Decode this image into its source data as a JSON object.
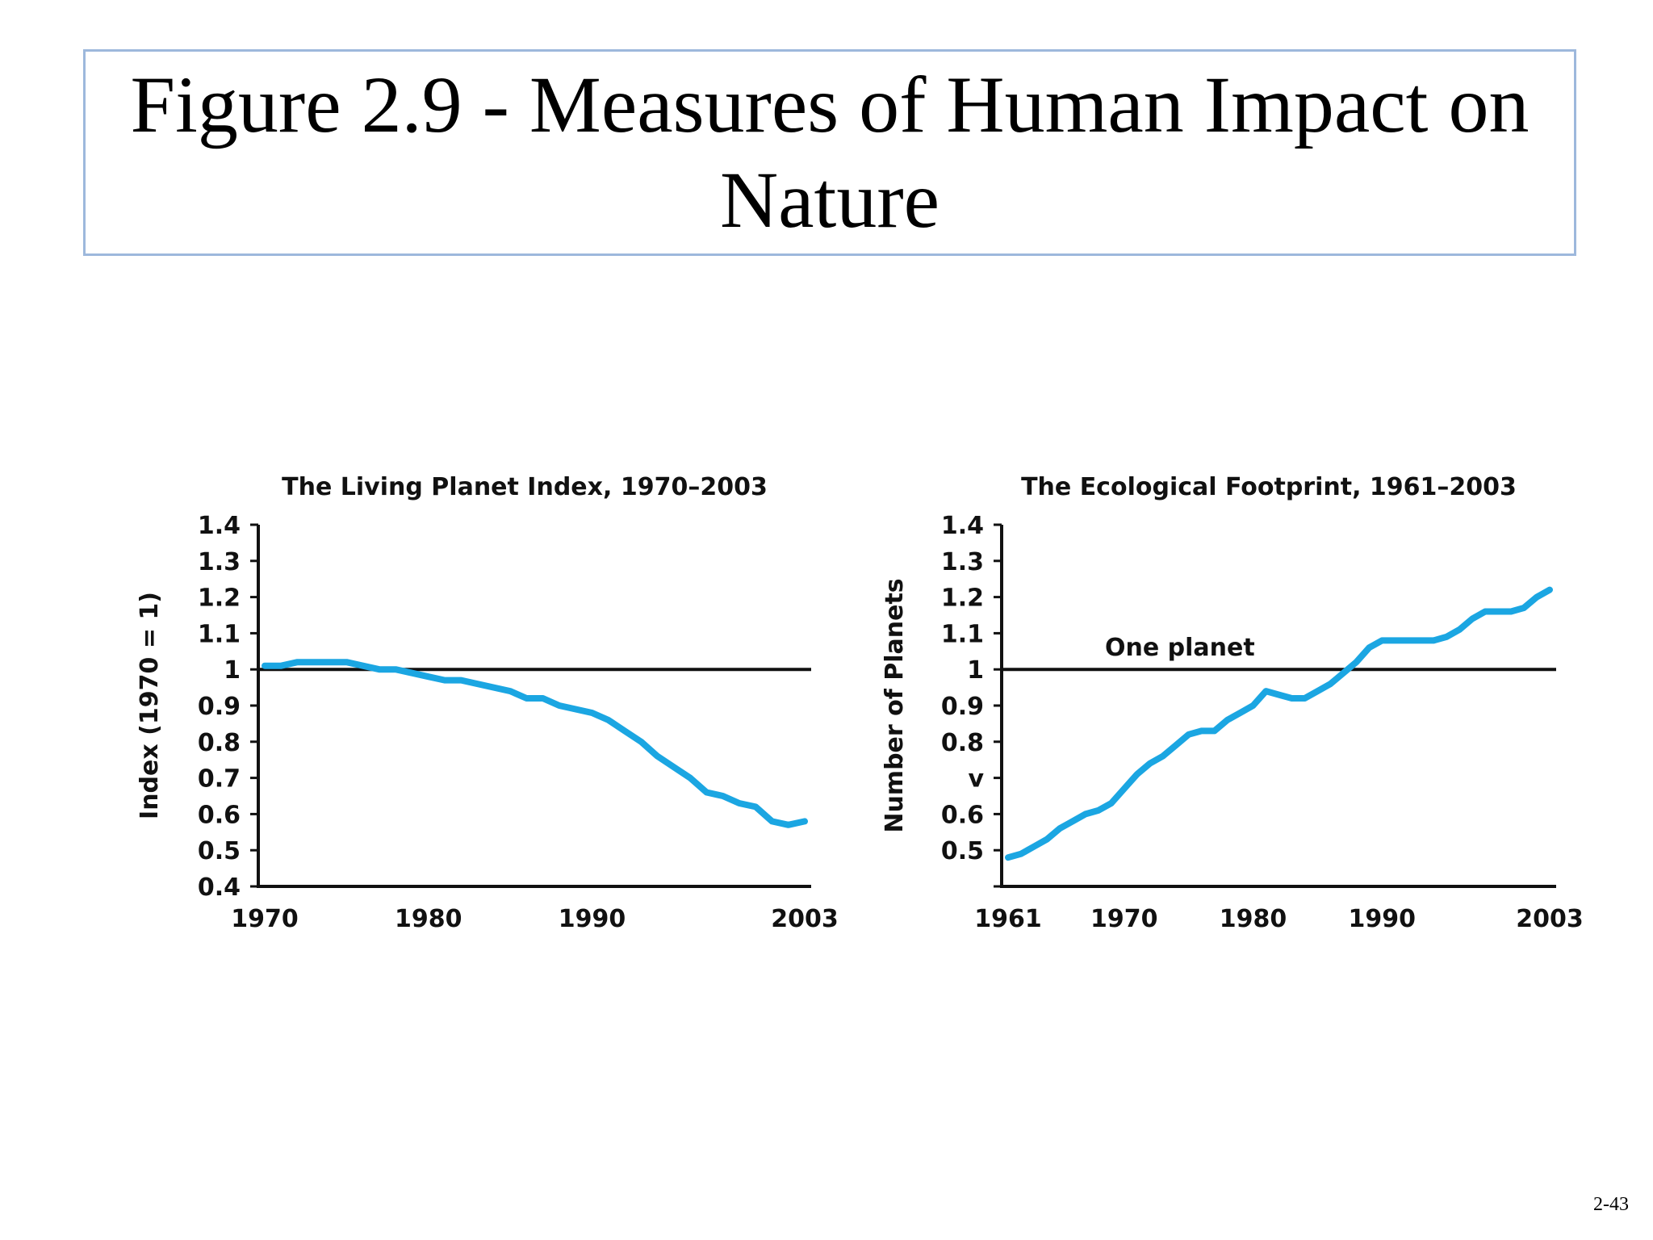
{
  "slide": {
    "title": "Figure 2.9 - Measures of Human Impact on Nature",
    "page_number": "2-43"
  },
  "colors": {
    "series": "#1ba6e2",
    "axis": "#111111",
    "title_border": "#9db8dc"
  },
  "chart_data": [
    {
      "type": "line",
      "title": "The Living Planet Index, 1970–2003",
      "xlabel": "",
      "ylabel": "Index (1970 = 1)",
      "xlim": [
        1970,
        2003
      ],
      "ylim": [
        0.4,
        1.4
      ],
      "x_ticks": [
        "1970",
        "1980",
        "1990",
        "2003"
      ],
      "y_ticks": [
        "1.4",
        "1.3",
        "1.2",
        "1.1",
        "1",
        "0.9",
        "0.8",
        "0.7",
        "0.6",
        "0.5",
        "0.4"
      ],
      "reference_line": {
        "y": 1,
        "label": ""
      },
      "grid": false,
      "series": [
        {
          "name": "",
          "x": [
            1970,
            1971,
            1972,
            1973,
            1974,
            1975,
            1976,
            1977,
            1978,
            1979,
            1980,
            1981,
            1982,
            1983,
            1984,
            1985,
            1986,
            1987,
            1988,
            1989,
            1990,
            1991,
            1992,
            1993,
            1994,
            1995,
            1996,
            1997,
            1998,
            1999,
            2000,
            2001,
            2002,
            2003
          ],
          "y": [
            1.01,
            1.01,
            1.02,
            1.02,
            1.02,
            1.02,
            1.01,
            1.0,
            1.0,
            0.99,
            0.98,
            0.97,
            0.97,
            0.96,
            0.95,
            0.94,
            0.92,
            0.92,
            0.9,
            0.89,
            0.88,
            0.86,
            0.83,
            0.8,
            0.76,
            0.73,
            0.7,
            0.66,
            0.65,
            0.63,
            0.62,
            0.58,
            0.57,
            0.58
          ]
        }
      ]
    },
    {
      "type": "line",
      "title": "The Ecological Footprint, 1961–2003",
      "xlabel": "",
      "ylabel": "Number of Planets",
      "xlim": [
        1961,
        2003
      ],
      "ylim": [
        0.4,
        1.4
      ],
      "x_ticks": [
        "1961",
        "1970",
        "1980",
        "1990",
        "2003"
      ],
      "y_ticks": [
        "1.4",
        "1.3",
        "1.2",
        "1.1",
        "1",
        "0.9",
        "0.8",
        "v",
        "0.6",
        "0.5",
        ""
      ],
      "reference_line": {
        "y": 1,
        "label": "One planet"
      },
      "grid": false,
      "series": [
        {
          "name": "",
          "x": [
            1961,
            1962,
            1963,
            1964,
            1965,
            1966,
            1967,
            1968,
            1969,
            1970,
            1971,
            1972,
            1973,
            1974,
            1975,
            1976,
            1977,
            1978,
            1979,
            1980,
            1981,
            1982,
            1983,
            1984,
            1985,
            1986,
            1987,
            1988,
            1989,
            1990,
            1991,
            1992,
            1993,
            1994,
            1995,
            1996,
            1997,
            1998,
            1999,
            2000,
            2001,
            2002,
            2003
          ],
          "y": [
            0.48,
            0.49,
            0.51,
            0.53,
            0.56,
            0.58,
            0.6,
            0.61,
            0.63,
            0.67,
            0.71,
            0.74,
            0.76,
            0.79,
            0.82,
            0.83,
            0.83,
            0.86,
            0.88,
            0.9,
            0.94,
            0.93,
            0.92,
            0.92,
            0.94,
            0.96,
            0.99,
            1.02,
            1.06,
            1.08,
            1.08,
            1.08,
            1.08,
            1.08,
            1.09,
            1.11,
            1.14,
            1.16,
            1.16,
            1.16,
            1.17,
            1.2,
            1.22
          ]
        }
      ]
    }
  ]
}
